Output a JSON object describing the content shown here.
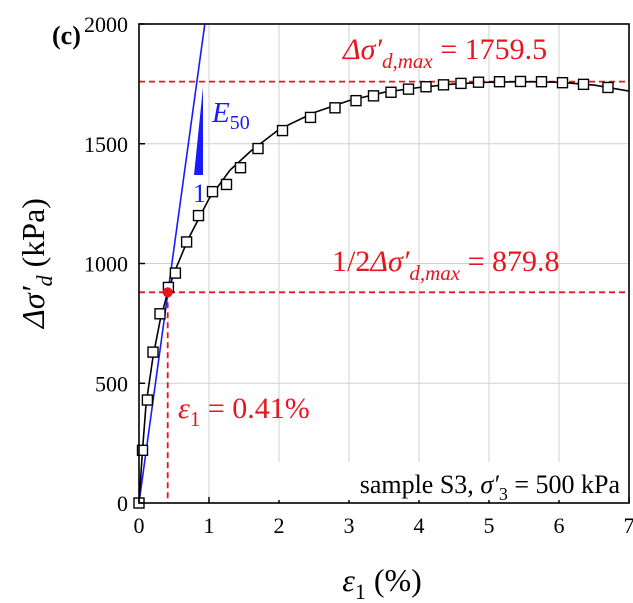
{
  "panel_label": "(c)",
  "chart_data": {
    "type": "line",
    "xlabel": "ε",
    "xlabel_sub": "1",
    "xlabel_unit": " (%)",
    "ylabel_prefix": "Δσ",
    "ylabel_prime": "′",
    "ylabel_sub": "d",
    "ylabel_unit": " (kPa)",
    "xlim": [
      0,
      7
    ],
    "ylim": [
      0,
      2000
    ],
    "xticks": [
      "0",
      "1",
      "2",
      "3",
      "4",
      "5",
      "6",
      "7"
    ],
    "yticks": [
      "0",
      "500",
      "1000",
      "1500",
      "2000"
    ],
    "grid": true,
    "series": [
      {
        "style": "markers",
        "marker": "open-square",
        "x": [
          0.0,
          0.05,
          0.12,
          0.2,
          0.3,
          0.42,
          0.52,
          0.68,
          0.85,
          1.05,
          1.25,
          1.45,
          1.7,
          2.05,
          2.45,
          2.8,
          3.1,
          3.35,
          3.6,
          3.85,
          4.1,
          4.35,
          4.6,
          4.85,
          5.15,
          5.45,
          5.75,
          6.05,
          6.35,
          6.7
        ],
        "y": [
          0,
          220,
          430,
          630,
          790,
          900,
          960,
          1090,
          1200,
          1300,
          1330,
          1400,
          1480,
          1555,
          1610,
          1650,
          1680,
          1700,
          1715,
          1728,
          1738,
          1746,
          1752,
          1757,
          1759,
          1760,
          1759,
          1755,
          1748,
          1735
        ]
      },
      {
        "style": "line",
        "color": "#000000",
        "x": [
          0.0,
          0.05,
          0.1,
          0.2,
          0.3,
          0.41,
          0.5,
          0.7,
          1.0,
          1.3,
          1.6,
          2.0,
          2.5,
          3.0,
          3.5,
          4.0,
          4.5,
          5.0,
          5.5,
          6.0,
          6.5,
          7.0
        ],
        "y": [
          0,
          220,
          410,
          610,
          760,
          880,
          960,
          1100,
          1270,
          1390,
          1470,
          1560,
          1630,
          1680,
          1715,
          1735,
          1750,
          1757,
          1759,
          1757,
          1745,
          1720
        ]
      }
    ],
    "tangent": {
      "label": "E",
      "label_sub": "50",
      "slope_label": "1",
      "color": "#1a1aff",
      "x": [
        0.0,
        0.94
      ],
      "y": [
        0,
        2000
      ]
    },
    "reference_lines": {
      "color": "#e8141e",
      "max": {
        "value": 1759.5,
        "text_prefix": "Δσ",
        "text_prime": "′",
        "text_sub": "d,max",
        "text_value": " = 1759.5"
      },
      "half": {
        "value": 879.8,
        "text_lead": "1/2",
        "text_prefix": "Δσ",
        "text_prime": "′",
        "text_sub": "d,max",
        "text_value": " = 879.8"
      },
      "strain": {
        "value": 0.41,
        "text_prefix": "ε",
        "text_sub": "1",
        "text_value": " = 0.41%"
      }
    },
    "sample_note": {
      "text_lead": "sample S3, ",
      "text_prefix": "σ",
      "text_prime": "′",
      "text_sub": "3",
      "text_value": " = 500 kPa"
    }
  }
}
